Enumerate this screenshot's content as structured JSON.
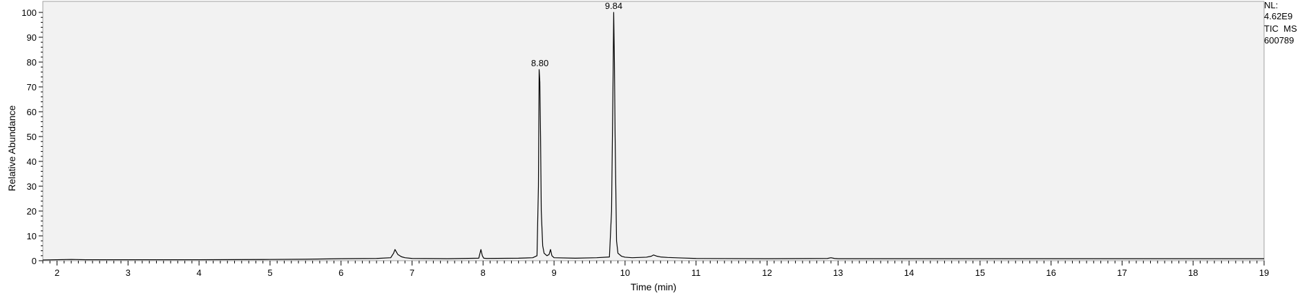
{
  "info_panel": {
    "line1": "NL:",
    "line2": "4.62E9",
    "line3": "TIC  MS",
    "line4": "600789"
  },
  "chart_data": {
    "type": "line",
    "title": "",
    "xlabel": "Time (min)",
    "ylabel": "Relative Abundance",
    "xlim": [
      1.8,
      19.0
    ],
    "ylim": [
      0,
      100
    ],
    "xticks": [
      2,
      3,
      4,
      5,
      6,
      7,
      8,
      9,
      10,
      11,
      12,
      13,
      14,
      15,
      16,
      17,
      18,
      19
    ],
    "yticks": [
      0,
      10,
      20,
      30,
      40,
      50,
      60,
      70,
      80,
      90,
      100
    ],
    "grid": false,
    "colors": {
      "plot_background": "#f2f2f2",
      "trace": "#000000",
      "frame": "#a0a0a0"
    },
    "peak_labels": [
      {
        "x": 8.8,
        "y": 77,
        "text": "8.80"
      },
      {
        "x": 9.84,
        "y": 100,
        "text": "9.84"
      }
    ],
    "series": [
      {
        "x": [
          1.8,
          2.0,
          2.2,
          2.4,
          3.0,
          4.0,
          5.0,
          5.5,
          6.0,
          6.5,
          6.7,
          6.74,
          6.76,
          6.78,
          6.8,
          6.85,
          6.9,
          7.0,
          7.5,
          7.94,
          7.97,
          7.99,
          8.01,
          8.05,
          8.5,
          8.7,
          8.76,
          8.78,
          8.79,
          8.8,
          8.81,
          8.82,
          8.84,
          8.86,
          8.9,
          8.93,
          8.95,
          8.97,
          9.0,
          9.3,
          9.6,
          9.78,
          9.81,
          9.83,
          9.84,
          9.85,
          9.86,
          9.88,
          9.9,
          9.95,
          10.0,
          10.1,
          10.3,
          10.37,
          10.4,
          10.45,
          10.5,
          10.6,
          10.8,
          11.0,
          12.0,
          12.85,
          12.9,
          12.95,
          13.0,
          14.0,
          15.0,
          16.0,
          17.0,
          18.0,
          19.0
        ],
        "y": [
          0.3,
          0.4,
          0.5,
          0.4,
          0.4,
          0.4,
          0.5,
          0.6,
          0.8,
          0.9,
          1.2,
          3.0,
          4.5,
          3.5,
          2.5,
          1.6,
          1.2,
          0.9,
          0.8,
          1.0,
          4.5,
          2.0,
          1.0,
          0.9,
          1.0,
          1.2,
          2.0,
          30.0,
          77.0,
          72.0,
          50.0,
          20.0,
          6.0,
          3.0,
          2.0,
          2.5,
          4.5,
          2.0,
          1.2,
          1.0,
          1.2,
          1.5,
          20.0,
          70.0,
          100.0,
          80.0,
          50.0,
          8.0,
          3.0,
          1.8,
          1.4,
          1.2,
          1.4,
          1.8,
          2.3,
          1.8,
          1.5,
          1.3,
          1.1,
          0.9,
          0.8,
          0.9,
          1.2,
          0.9,
          0.8,
          0.8,
          0.8,
          0.8,
          0.8,
          0.8,
          0.8
        ]
      }
    ]
  }
}
